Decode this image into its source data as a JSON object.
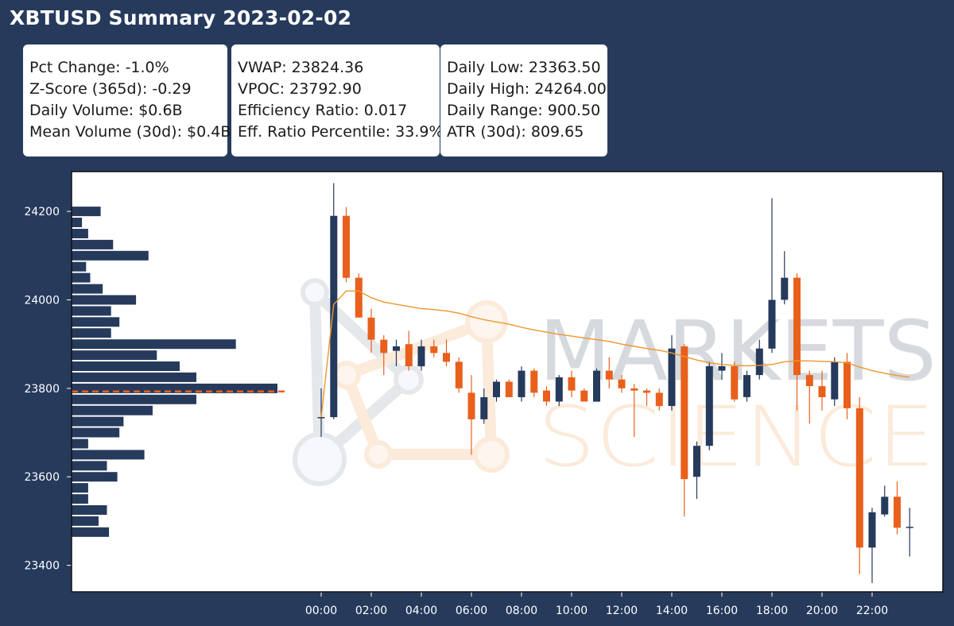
{
  "title": "XBTUSD Summary 2023-02-02",
  "stats": {
    "col1": [
      "Pct Change: -1.0%",
      "Z-Score (365d): -0.29",
      "Daily Volume: $0.6B",
      "Mean Volume (30d): $0.4B"
    ],
    "col2": [
      "VWAP: 23824.36",
      "VPOC: 23792.90",
      "Efficiency Ratio: 0.017",
      "Eff. Ratio Percentile: 33.9%"
    ],
    "col3": [
      "Daily Low: 23363.50",
      "Daily High: 24264.00",
      "Daily Range: 900.50",
      "ATR (30d): 809.65"
    ]
  },
  "watermark": [
    "MARKETS",
    "SCIENCE"
  ],
  "colors": {
    "up": "#263a5c",
    "down": "#e8601c",
    "vwap": "#f0962e",
    "profile": "#263a5c",
    "background": "#263a5c"
  },
  "chart_data": {
    "type": "candlestick",
    "y_ticks": [
      23400,
      23600,
      23800,
      24000,
      24200
    ],
    "ylim": [
      23340,
      24290
    ],
    "x_ticks": [
      "00:00",
      "02:00",
      "04:00",
      "06:00",
      "08:00",
      "10:00",
      "12:00",
      "14:00",
      "16:00",
      "18:00",
      "20:00",
      "22:00"
    ],
    "interval_minutes": 30,
    "vpoc": 23792.9,
    "candles": [
      {
        "t": "00:00",
        "o": 23735,
        "h": 23800,
        "l": 23690,
        "c": 23735
      },
      {
        "t": "00:30",
        "o": 23735,
        "h": 24264,
        "l": 23730,
        "c": 24190
      },
      {
        "t": "01:00",
        "o": 24190,
        "h": 24210,
        "l": 24040,
        "c": 24050
      },
      {
        "t": "01:30",
        "o": 24050,
        "h": 24060,
        "l": 23960,
        "c": 23960
      },
      {
        "t": "02:00",
        "o": 23960,
        "h": 23980,
        "l": 23880,
        "c": 23910
      },
      {
        "t": "02:30",
        "o": 23910,
        "h": 23920,
        "l": 23830,
        "c": 23880
      },
      {
        "t": "03:00",
        "o": 23885,
        "h": 23910,
        "l": 23850,
        "c": 23895
      },
      {
        "t": "03:30",
        "o": 23900,
        "h": 23930,
        "l": 23840,
        "c": 23850
      },
      {
        "t": "04:00",
        "o": 23850,
        "h": 23910,
        "l": 23840,
        "c": 23895
      },
      {
        "t": "04:30",
        "o": 23895,
        "h": 23910,
        "l": 23870,
        "c": 23880
      },
      {
        "t": "05:00",
        "o": 23880,
        "h": 23910,
        "l": 23850,
        "c": 23860
      },
      {
        "t": "05:30",
        "o": 23860,
        "h": 23870,
        "l": 23790,
        "c": 23800
      },
      {
        "t": "06:00",
        "o": 23790,
        "h": 23830,
        "l": 23650,
        "c": 23730
      },
      {
        "t": "06:30",
        "o": 23730,
        "h": 23800,
        "l": 23720,
        "c": 23780
      },
      {
        "t": "07:00",
        "o": 23780,
        "h": 23820,
        "l": 23770,
        "c": 23815
      },
      {
        "t": "07:30",
        "o": 23815,
        "h": 23820,
        "l": 23780,
        "c": 23780
      },
      {
        "t": "08:00",
        "o": 23780,
        "h": 23850,
        "l": 23770,
        "c": 23840
      },
      {
        "t": "08:30",
        "o": 23840,
        "h": 23845,
        "l": 23780,
        "c": 23790
      },
      {
        "t": "09:00",
        "o": 23795,
        "h": 23805,
        "l": 23760,
        "c": 23770
      },
      {
        "t": "09:30",
        "o": 23770,
        "h": 23830,
        "l": 23760,
        "c": 23825
      },
      {
        "t": "10:00",
        "o": 23825,
        "h": 23840,
        "l": 23780,
        "c": 23795
      },
      {
        "t": "10:30",
        "o": 23795,
        "h": 23800,
        "l": 23770,
        "c": 23770
      },
      {
        "t": "11:00",
        "o": 23770,
        "h": 23845,
        "l": 23770,
        "c": 23840
      },
      {
        "t": "11:30",
        "o": 23840,
        "h": 23870,
        "l": 23800,
        "c": 23820
      },
      {
        "t": "12:00",
        "o": 23820,
        "h": 23830,
        "l": 23790,
        "c": 23800
      },
      {
        "t": "12:30",
        "o": 23800,
        "h": 23810,
        "l": 23690,
        "c": 23795
      },
      {
        "t": "13:00",
        "o": 23795,
        "h": 23800,
        "l": 23760,
        "c": 23790
      },
      {
        "t": "13:30",
        "o": 23790,
        "h": 23800,
        "l": 23750,
        "c": 23760
      },
      {
        "t": "14:00",
        "o": 23760,
        "h": 23920,
        "l": 23750,
        "c": 23890
      },
      {
        "t": "14:30",
        "o": 23895,
        "h": 23900,
        "l": 23510,
        "c": 23595
      },
      {
        "t": "15:00",
        "o": 23600,
        "h": 23680,
        "l": 23550,
        "c": 23670
      },
      {
        "t": "15:30",
        "o": 23670,
        "h": 23860,
        "l": 23660,
        "c": 23850
      },
      {
        "t": "16:00",
        "o": 23840,
        "h": 23880,
        "l": 23820,
        "c": 23850
      },
      {
        "t": "16:30",
        "o": 23850,
        "h": 23860,
        "l": 23770,
        "c": 23775
      },
      {
        "t": "17:00",
        "o": 23780,
        "h": 23840,
        "l": 23770,
        "c": 23830
      },
      {
        "t": "17:30",
        "o": 23830,
        "h": 23910,
        "l": 23820,
        "c": 23890
      },
      {
        "t": "18:00",
        "o": 23890,
        "h": 24230,
        "l": 23880,
        "c": 24000
      },
      {
        "t": "18:30",
        "o": 24000,
        "h": 24110,
        "l": 23990,
        "c": 24050
      },
      {
        "t": "19:00",
        "o": 24050,
        "h": 24060,
        "l": 23750,
        "c": 23830
      },
      {
        "t": "19:30",
        "o": 23830,
        "h": 23840,
        "l": 23720,
        "c": 23805
      },
      {
        "t": "20:00",
        "o": 23805,
        "h": 23840,
        "l": 23750,
        "c": 23780
      },
      {
        "t": "20:30",
        "o": 23775,
        "h": 23870,
        "l": 23760,
        "c": 23860
      },
      {
        "t": "21:00",
        "o": 23860,
        "h": 23880,
        "l": 23730,
        "c": 23755
      },
      {
        "t": "21:30",
        "o": 23755,
        "h": 23780,
        "l": 23380,
        "c": 23440
      },
      {
        "t": "22:00",
        "o": 23440,
        "h": 23530,
        "l": 23360,
        "c": 23520
      },
      {
        "t": "22:30",
        "o": 23515,
        "h": 23580,
        "l": 23510,
        "c": 23555
      },
      {
        "t": "23:00",
        "o": 23555,
        "h": 23590,
        "l": 23470,
        "c": 23485
      },
      {
        "t": "23:30",
        "o": 23487,
        "h": 23530,
        "l": 23420,
        "c": 23487
      }
    ],
    "vwap_line": [
      23735,
      23990,
      24020,
      24020,
      24005,
      23995,
      23990,
      23985,
      23980,
      23978,
      23975,
      23970,
      23962,
      23955,
      23950,
      23945,
      23938,
      23932,
      23927,
      23922,
      23918,
      23914,
      23910,
      23906,
      23900,
      23895,
      23890,
      23886,
      23880,
      23872,
      23864,
      23858,
      23854,
      23852,
      23851,
      23852,
      23854,
      23860,
      23862,
      23862,
      23861,
      23860,
      23858,
      23848,
      23840,
      23834,
      23829,
      23825
    ],
    "volume_profile": {
      "levels": [
        24200,
        24175,
        24150,
        24125,
        24100,
        24075,
        24050,
        24025,
        24000,
        23975,
        23950,
        23925,
        23900,
        23875,
        23850,
        23825,
        23800,
        23775,
        23750,
        23725,
        23700,
        23675,
        23650,
        23625,
        23600,
        23575,
        23550,
        23525,
        23500,
        23475
      ],
      "volumes": [
        14,
        5,
        8,
        20,
        37,
        7,
        9,
        15,
        31,
        19,
        23,
        19,
        79,
        41,
        52,
        60,
        99,
        60,
        39,
        25,
        23,
        8,
        35,
        17,
        22,
        8,
        8,
        17,
        13,
        18
      ]
    }
  }
}
